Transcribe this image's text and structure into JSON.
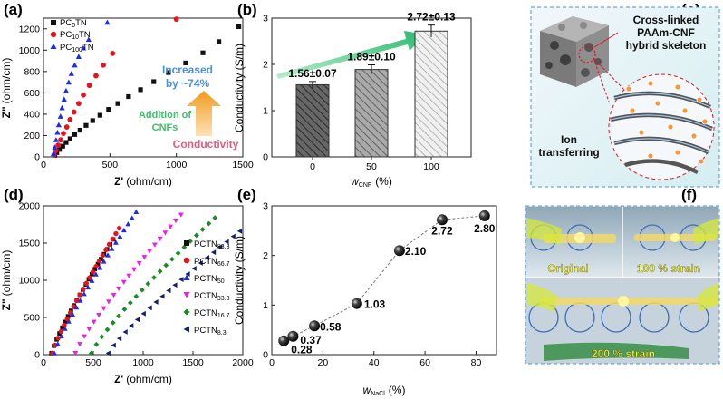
{
  "panels": {
    "a": {
      "label": "(a)"
    },
    "b": {
      "label": "(b)"
    },
    "c": {
      "label": "(c)"
    },
    "d": {
      "label": "(d)"
    },
    "e": {
      "label": "(e)"
    },
    "f": {
      "label": "(f)"
    }
  },
  "colors": {
    "black": "#111111",
    "red": "#e8141c",
    "blue": "#1a2bf0",
    "magenta": "#ee1ee8",
    "green": "#1d8a2a",
    "navy": "#16216e",
    "annot_blue": "#4a90e2",
    "annot_green": "#3fbf6a",
    "annot_pink": "#e85a7a",
    "panel_frame": "#4a90e2",
    "arrow_orange": "#f0a030"
  },
  "chart_data": [
    {
      "panel": "a",
      "type": "scatter",
      "xlabel_main": "Z'",
      "xlabel_unit": "(ohm/cm)",
      "ylabel_main": "Z\"",
      "ylabel_unit": "(ohm/cm)",
      "xlim": [
        0,
        1500
      ],
      "ylim": [
        0,
        1300
      ],
      "xticks": [
        "0",
        "500",
        "1000",
        "1500"
      ],
      "yticks": [
        "0",
        "200",
        "400",
        "600",
        "800",
        "1000",
        "1200"
      ],
      "series": [
        {
          "name_pre": "PC",
          "name_sub": "0",
          "name_post": "TN",
          "marker": "square",
          "color": "#111111",
          "x": [
            85,
            100,
            120,
            145,
            170,
            200,
            235,
            275,
            320,
            370,
            425,
            490,
            560,
            640,
            730,
            830,
            940,
            1070,
            1200,
            1320,
            1470
          ],
          "y": [
            15,
            40,
            70,
            100,
            135,
            170,
            210,
            250,
            295,
            340,
            390,
            445,
            500,
            565,
            630,
            705,
            790,
            880,
            975,
            1080,
            1220
          ]
        },
        {
          "name_pre": "PC",
          "name_sub": "10",
          "name_post": "TN",
          "marker": "circle",
          "color": "#e8141c",
          "x": [
            80,
            95,
            110,
            130,
            150,
            175,
            200,
            230,
            265,
            300,
            345,
            395,
            450,
            520,
            1000
          ],
          "y": [
            20,
            60,
            110,
            160,
            220,
            280,
            350,
            420,
            500,
            580,
            670,
            760,
            860,
            970,
            1290
          ]
        },
        {
          "name_pre": "PC",
          "name_sub": "100",
          "name_post": "TN",
          "marker": "triangle",
          "color": "#1a2bf0",
          "x": [
            75,
            85,
            95,
            105,
            115,
            128,
            140,
            155,
            170,
            190,
            210,
            235,
            265,
            300,
            340,
            480
          ],
          "y": [
            30,
            90,
            160,
            230,
            300,
            380,
            460,
            540,
            620,
            700,
            780,
            860,
            940,
            1020,
            1100,
            1260
          ]
        }
      ],
      "annotations": {
        "increased_line1": "Increased",
        "increased_line2": "by ~74%",
        "addition_line1": "Addition of",
        "addition_line2": "CNFs",
        "conductivity": "Conductivity"
      }
    },
    {
      "panel": "b",
      "type": "bar",
      "categories": [
        "0",
        "50",
        "100"
      ],
      "values": [
        1.56,
        1.89,
        2.72
      ],
      "errors": [
        0.07,
        0.1,
        0.13
      ],
      "value_labels": [
        "1.56±0.07",
        "1.89±0.10",
        "2.72±0.13"
      ],
      "ylabel": "Conductivity (S/m)",
      "xlabel_main": "w",
      "xlabel_sub": "CNF",
      "xlabel_unit": "(%)",
      "ylim": [
        0,
        3
      ],
      "yticks": [
        "0",
        "1",
        "2",
        "3"
      ]
    },
    {
      "panel": "d",
      "type": "scatter",
      "xlabel_main": "Z'",
      "xlabel_unit": "(ohm/cm)",
      "ylabel_main": "Z\"",
      "ylabel_unit": "(ohm/cm)",
      "xlim": [
        0,
        2000
      ],
      "ylim": [
        0,
        2000
      ],
      "xticks": [
        "0",
        "500",
        "1000",
        "1500",
        "2000"
      ],
      "yticks": [
        "0",
        "500",
        "1000",
        "1500",
        "2000"
      ],
      "series": [
        {
          "name_pre": "PCTN",
          "name_sub": "83.3",
          "marker": "square",
          "color": "#111111",
          "x0": 80,
          "x1": 700,
          "y1": 1550
        },
        {
          "name_pre": "PCTN",
          "name_sub": "66.7",
          "marker": "circle",
          "color": "#e8141c",
          "x0": 90,
          "x1": 760,
          "y1": 1700
        },
        {
          "name_pre": "PCTN",
          "name_sub": "50",
          "marker": "triangle",
          "color": "#1a2bf0",
          "x0": 110,
          "x1": 930,
          "y1": 1920
        },
        {
          "name_pre": "PCTN",
          "name_sub": "33.3",
          "marker": "tri-down",
          "color": "#ee1ee8",
          "x0": 320,
          "x1": 1380,
          "y1": 1880
        },
        {
          "name_pre": "PCTN",
          "name_sub": "16.7",
          "marker": "diamond",
          "color": "#1d8a2a",
          "x0": 480,
          "x1": 1720,
          "y1": 1840
        },
        {
          "name_pre": "PCTN",
          "name_sub": "8.3",
          "marker": "tri-left",
          "color": "#16216e",
          "x0": 650,
          "x1": 1970,
          "y1": 1660
        }
      ]
    },
    {
      "panel": "e",
      "type": "line",
      "x": [
        4.7,
        8.3,
        16.7,
        33.3,
        50,
        66.7,
        83.3
      ],
      "y": [
        0.28,
        0.37,
        0.58,
        1.03,
        2.1,
        2.72,
        2.8
      ],
      "point_labels": [
        "0.28",
        "0.37",
        "0.58",
        "1.03",
        "2.10",
        "2.72",
        "2.80"
      ],
      "ylabel": "Conductivity (S/m)",
      "xlabel_main": "w",
      "xlabel_sub": "NaCl",
      "xlabel_unit": "(%)",
      "xlim": [
        0,
        88
      ],
      "ylim": [
        0,
        3
      ],
      "xticks": [
        "0",
        "20",
        "40",
        "60",
        "80"
      ],
      "yticks": [
        "0",
        "1",
        "2",
        "3"
      ]
    }
  ],
  "schematic": {
    "line1": "Cross-linked",
    "line2": "PAAm-CNF",
    "line3": "hybrid skeleton",
    "ion1": "Ion",
    "ion2": "transferring"
  },
  "photo": {
    "label_original": "Original",
    "label_100": "100 % strain",
    "label_200": "200 % strain"
  }
}
